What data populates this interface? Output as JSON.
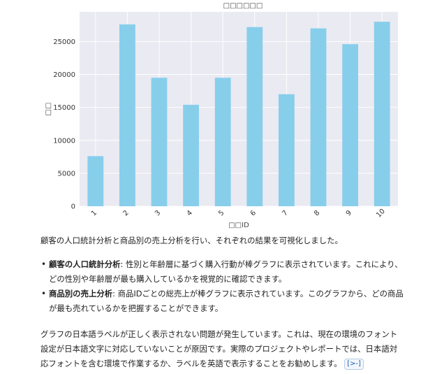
{
  "chart_data": {
    "type": "bar",
    "title": "□□□□□□",
    "xlabel": "□□ID",
    "ylabel": "□□",
    "categories": [
      "1",
      "2",
      "3",
      "4",
      "5",
      "6",
      "7",
      "8",
      "9",
      "10"
    ],
    "values": [
      7600,
      27600,
      19500,
      15400,
      19500,
      27200,
      17000,
      27000,
      24600,
      28000
    ],
    "ylim": [
      0,
      29500
    ],
    "yticks": [
      0,
      5000,
      10000,
      15000,
      20000,
      25000
    ],
    "bar_color": "#87ceeb",
    "plot_background": "#eaeaf2",
    "grid": true
  },
  "summary": {
    "intro": "顧客の人口統計分析と商品別の売上分析を行い、それぞれの結果を可視化しました。",
    "items": [
      {
        "label": "顧客の人口統計分析",
        "text": ": 性別と年齢層に基づく購入行動が棒グラフに表示されています。これにより、どの性別や年齢層が最も購入しているかを視覚的に確認できます。"
      },
      {
        "label": "商品別の売上分析",
        "text": ": 商品IDごとの総売上が棒グラフに表示されています。このグラフから、どの商品が最も売れているかを把握することができます。"
      }
    ],
    "note": "グラフの日本語ラベルが正しく表示されない問題が発生しています。これは、現在の環境のフォント設定が日本語文字に対応していないことが原因です。実際のプロジェクトやレポートでは、日本語対応フォントを含む環境で作業するか、ラベルを英語で表示することをお勧めします。",
    "citation_label": "[>-]"
  }
}
